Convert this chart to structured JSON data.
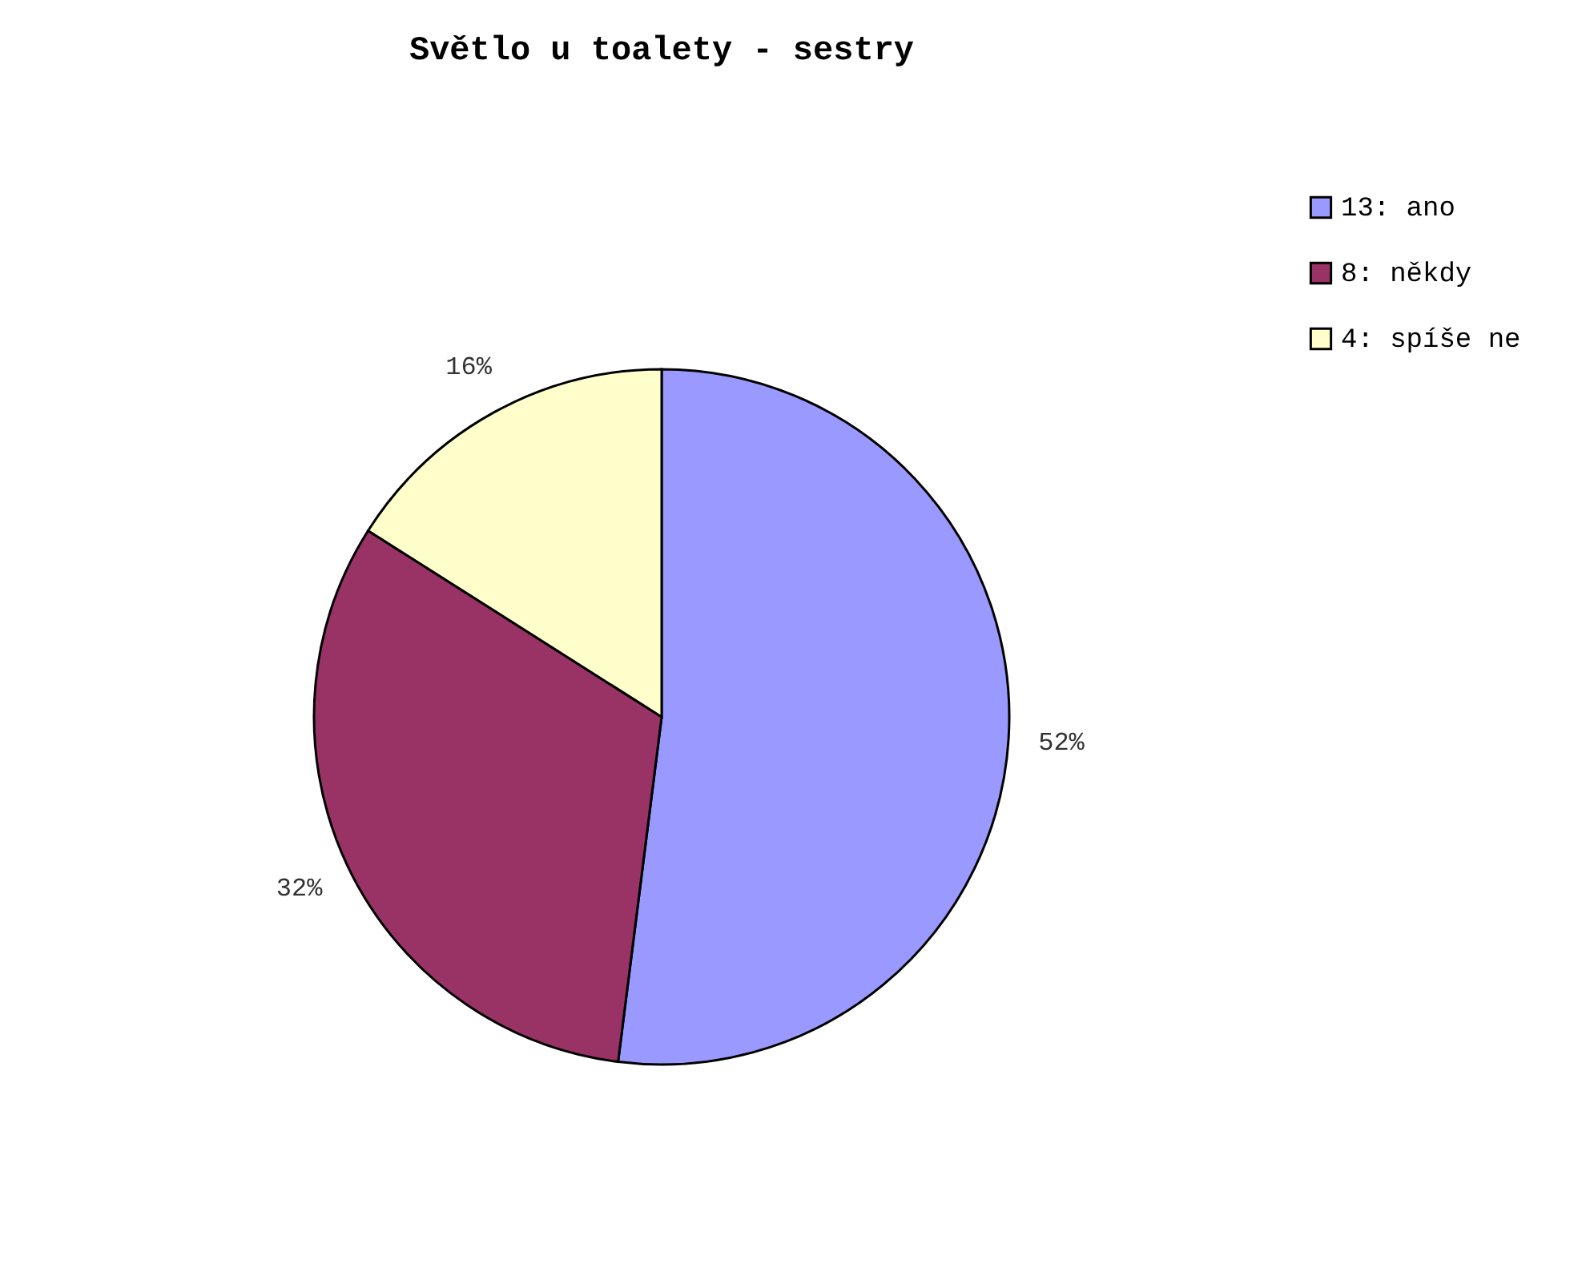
{
  "chart_data": {
    "type": "pie",
    "title": "Světlo u toalety - sestry",
    "categories": [
      "13: ano",
      "8: někdy",
      "4: spíše ne"
    ],
    "values": [
      52,
      32,
      16
    ],
    "value_labels": [
      "52%",
      "32%",
      "16%"
    ],
    "colors": [
      "#9999ff",
      "#993366",
      "#ffffcc"
    ],
    "legend": "right"
  }
}
